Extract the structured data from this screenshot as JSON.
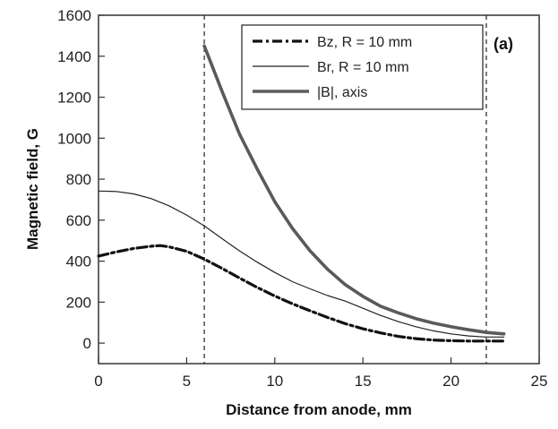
{
  "chart_data": {
    "type": "line",
    "panel_label": "(a)",
    "xlabel": "Distance from anode, mm",
    "ylabel": "Magnetic field, G",
    "xlim": [
      0,
      25
    ],
    "ylim": [
      -100,
      1600
    ],
    "xticks": [
      0,
      5,
      10,
      15,
      20,
      25
    ],
    "yticks": [
      0,
      200,
      400,
      600,
      800,
      1000,
      1200,
      1400,
      1600
    ],
    "grid": false,
    "legend_position": "top-right",
    "vertical_markers": [
      6,
      22
    ],
    "series": [
      {
        "name": "Bz, R = 10 mm",
        "style": "dash-dot",
        "color": "#111111",
        "x": [
          0,
          1,
          2,
          3,
          3.5,
          4,
          5,
          6,
          7,
          8,
          9,
          10,
          11,
          12,
          13,
          14,
          15,
          16,
          17,
          18,
          19,
          20,
          21,
          22,
          23
        ],
        "y": [
          425,
          445,
          462,
          473,
          476,
          470,
          448,
          410,
          365,
          318,
          272,
          230,
          192,
          158,
          125,
          95,
          70,
          50,
          33,
          22,
          15,
          12,
          10,
          10,
          10
        ]
      },
      {
        "name": "Br, R = 10 mm",
        "style": "solid-thin",
        "color": "#222222",
        "x": [
          0,
          1,
          2,
          3,
          4,
          5,
          6,
          7,
          8,
          9,
          10,
          11,
          12,
          13,
          14,
          15,
          16,
          17,
          18,
          19,
          20,
          21,
          22,
          23
        ],
        "y": [
          742,
          740,
          728,
          705,
          670,
          625,
          572,
          510,
          450,
          395,
          345,
          300,
          265,
          232,
          205,
          170,
          135,
          105,
          80,
          60,
          45,
          35,
          30,
          30
        ]
      },
      {
        "name": "|B|, axis",
        "style": "solid-thick",
        "color": "#555555",
        "x": [
          6,
          7,
          8,
          9,
          10,
          11,
          12,
          13,
          14,
          15,
          16,
          17,
          18,
          19,
          20,
          21,
          22,
          23
        ],
        "y": [
          1450,
          1230,
          1020,
          850,
          690,
          560,
          450,
          360,
          285,
          228,
          180,
          148,
          120,
          98,
          80,
          65,
          52,
          45
        ]
      }
    ]
  }
}
